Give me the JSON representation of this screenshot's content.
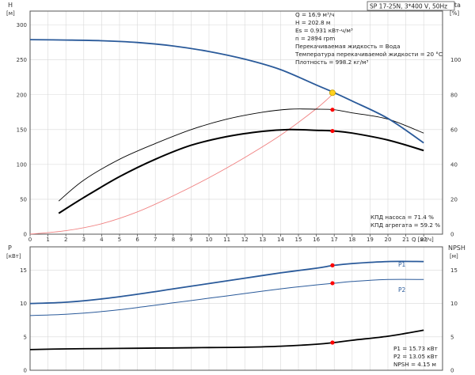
{
  "header": {
    "pump_title": "SP 17-25N, 3*400 V, 50Hz"
  },
  "info_lines": [
    "Q = 16.9 м³/ч",
    "H = 202.8 м",
    "Es = 0.931 кВт-ч/м³",
    "n = 2894 rpm",
    "Перекачиваемая жидкость = Вода",
    "Температура перекачиваемой жидкости = 20 °C",
    "Плотность = 998.2 кг/м³"
  ],
  "efficiency_notes": [
    "КПД насоса = 71.4 %",
    "КПД агрегата = 59.2 %"
  ],
  "power_notes": [
    "P1 = 15.73 кВт",
    "P2 = 13.05 кВт",
    "NPSH = 4.15 м"
  ],
  "colors": {
    "head_curve": "#2a5a9a",
    "power_curve": "#2a5a9a",
    "efficiency_pump": "#000000",
    "efficiency_total": "#000000",
    "system_curve": "#f08080",
    "npsh_curve": "#000000",
    "duty_point_marker": "#ff0000",
    "duty_point_highlight": "#ffd21f",
    "grid": "#d8d8d8",
    "axis": "#555555"
  },
  "chart_data": [
    {
      "type": "line",
      "x_unit_label": "Q [м³/ч]",
      "xlim": [
        0,
        23
      ],
      "x_ticks": [
        0,
        1,
        2,
        3,
        4,
        5,
        6,
        7,
        8,
        9,
        10,
        11,
        12,
        13,
        14,
        15,
        16,
        17,
        18,
        19,
        20,
        21,
        22
      ],
      "left_axis": {
        "symbol": "H",
        "unit": "[м]",
        "ylim": [
          0,
          320
        ],
        "ticks": [
          0,
          50,
          100,
          150,
          200,
          250,
          300
        ]
      },
      "right_axis": {
        "symbol": "eta",
        "unit": "[%]",
        "ylim": [
          0,
          128
        ],
        "ticks": [
          0,
          20,
          40,
          60,
          80,
          100
        ]
      },
      "grid": true,
      "series": [
        {
          "axis": "left",
          "x": [
            0,
            2,
            4,
            6,
            8,
            10,
            12,
            14,
            16,
            17,
            18,
            20,
            22
          ],
          "y": [
            279,
            278.5,
            277.5,
            275,
            270,
            262,
            251,
            236,
            214,
            203,
            191,
            166,
            131
          ]
        },
        {
          "axis": "right",
          "x": [
            1.6,
            3,
            5,
            7,
            9,
            11,
            13,
            14.5,
            16,
            17,
            18,
            20,
            22
          ],
          "y": [
            19,
            31,
            43,
            52,
            60,
            66,
            70,
            71.7,
            71.7,
            71.4,
            69.6,
            66,
            58
          ]
        },
        {
          "axis": "right",
          "x": [
            1.6,
            3,
            5,
            7,
            9,
            11,
            13,
            14.5,
            16,
            17,
            18,
            20,
            22
          ],
          "y": [
            12,
            21,
            33,
            43,
            51,
            56,
            59,
            60,
            59.6,
            59.2,
            58,
            54,
            48
          ]
        },
        {
          "axis": "left",
          "x": [
            0,
            2,
            4,
            6,
            8,
            10,
            12,
            14,
            16,
            17
          ],
          "y": [
            0,
            5,
            15,
            32,
            55,
            81,
            110,
            142,
            180,
            202.8
          ]
        }
      ],
      "duty_point": {
        "x": 16.9,
        "head": 202.8,
        "eta_pump": 71.4,
        "eta_total": 59.2
      }
    },
    {
      "type": "line",
      "x_unit_label": "Q [м³/ч]",
      "xlim": [
        0,
        23
      ],
      "x_ticks": [
        0,
        1,
        2,
        3,
        4,
        5,
        6,
        7,
        8,
        9,
        10,
        11,
        12,
        13,
        14,
        15,
        16,
        17,
        18,
        19,
        20,
        21,
        22
      ],
      "left_axis": {
        "symbol": "P",
        "unit": "[кВт]",
        "ylim": [
          0,
          18.5
        ],
        "ticks": [
          0,
          5,
          10,
          15
        ]
      },
      "right_axis": {
        "symbol": "NPSH",
        "unit": "[м]",
        "ylim": [
          0,
          18.5
        ],
        "ticks": [
          0,
          5,
          10,
          15
        ]
      },
      "grid": true,
      "series": [
        {
          "name": "P1",
          "axis": "left",
          "x": [
            0,
            2,
            4,
            6,
            8,
            10,
            12,
            14,
            16,
            17,
            18,
            20,
            22
          ],
          "y": [
            10.0,
            10.2,
            10.7,
            11.4,
            12.2,
            13.0,
            13.8,
            14.6,
            15.3,
            15.73,
            16.0,
            16.3,
            16.3
          ]
        },
        {
          "name": "P2",
          "axis": "left",
          "x": [
            0,
            2,
            4,
            6,
            8,
            10,
            12,
            14,
            16,
            17,
            18,
            20,
            22
          ],
          "y": [
            8.2,
            8.4,
            8.8,
            9.4,
            10.1,
            10.8,
            11.5,
            12.2,
            12.8,
            13.05,
            13.3,
            13.6,
            13.6
          ]
        },
        {
          "axis": "right",
          "x": [
            0,
            2,
            4,
            6,
            8,
            10,
            12,
            14,
            16,
            17,
            18,
            20,
            22
          ],
          "y": [
            3.1,
            3.2,
            3.25,
            3.3,
            3.35,
            3.4,
            3.45,
            3.6,
            3.9,
            4.15,
            4.5,
            5.1,
            6.0
          ]
        }
      ],
      "duty_point": {
        "x": 16.9,
        "p1": 15.73,
        "p2": 13.05,
        "npsh": 4.15
      }
    }
  ]
}
